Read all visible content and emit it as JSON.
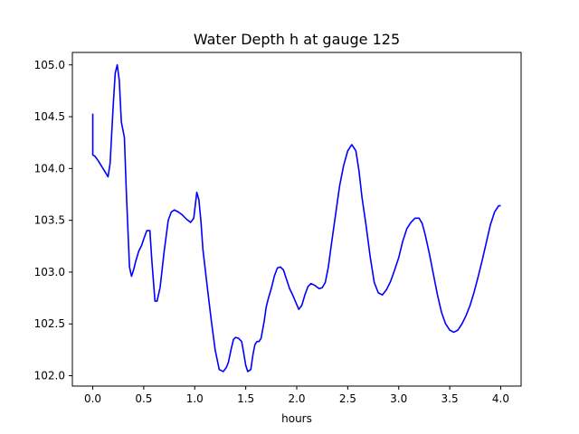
{
  "chart_data": {
    "type": "line",
    "title": "Water Depth h at gauge 125",
    "xlabel": "hours",
    "ylabel": "",
    "xlim": [
      -0.2,
      4.2
    ],
    "ylim": [
      101.9,
      105.12
    ],
    "xticks": [
      0.0,
      0.5,
      1.0,
      1.5,
      2.0,
      2.5,
      3.0,
      3.5,
      4.0
    ],
    "xtick_labels": [
      "0.0",
      "0.5",
      "1.0",
      "1.5",
      "2.0",
      "2.5",
      "3.0",
      "3.5",
      "4.0"
    ],
    "yticks": [
      102.0,
      102.5,
      103.0,
      103.5,
      104.0,
      104.5,
      105.0
    ],
    "ytick_labels": [
      "102.0",
      "102.5",
      "103.0",
      "103.5",
      "104.0",
      "104.5",
      "105.0"
    ],
    "grid": false,
    "series": [
      {
        "color": "#0000ff",
        "x": [
          0.0,
          0.0,
          0.02,
          0.05,
          0.1,
          0.15,
          0.17,
          0.2,
          0.22,
          0.24,
          0.26,
          0.28,
          0.31,
          0.33,
          0.36,
          0.38,
          0.4,
          0.42,
          0.45,
          0.48,
          0.5,
          0.53,
          0.56,
          0.58,
          0.61,
          0.63,
          0.66,
          0.7,
          0.74,
          0.77,
          0.8,
          0.84,
          0.88,
          0.92,
          0.96,
          0.99,
          1.02,
          1.04,
          1.06,
          1.08,
          1.12,
          1.16,
          1.2,
          1.24,
          1.28,
          1.31,
          1.33,
          1.36,
          1.38,
          1.4,
          1.43,
          1.46,
          1.48,
          1.5,
          1.52,
          1.55,
          1.57,
          1.59,
          1.61,
          1.63,
          1.65,
          1.68,
          1.7,
          1.72,
          1.75,
          1.78,
          1.81,
          1.84,
          1.87,
          1.9,
          1.93,
          1.96,
          1.99,
          2.02,
          2.05,
          2.08,
          2.11,
          2.14,
          2.18,
          2.22,
          2.25,
          2.28,
          2.31,
          2.34,
          2.38,
          2.42,
          2.46,
          2.5,
          2.54,
          2.58,
          2.61,
          2.64,
          2.68,
          2.72,
          2.76,
          2.8,
          2.84,
          2.88,
          2.92,
          2.96,
          3.0,
          3.04,
          3.08,
          3.12,
          3.16,
          3.2,
          3.23,
          3.26,
          3.3,
          3.34,
          3.38,
          3.42,
          3.46,
          3.5,
          3.54,
          3.58,
          3.62,
          3.66,
          3.7,
          3.74,
          3.78,
          3.82,
          3.86,
          3.9,
          3.94,
          3.98,
          4.0
        ],
        "y": [
          104.53,
          104.13,
          104.12,
          104.08,
          104.0,
          103.92,
          104.05,
          104.6,
          104.92,
          105.0,
          104.85,
          104.45,
          104.3,
          103.75,
          103.05,
          102.96,
          103.02,
          103.1,
          103.2,
          103.26,
          103.32,
          103.4,
          103.4,
          103.1,
          102.72,
          102.72,
          102.85,
          103.2,
          103.5,
          103.58,
          103.6,
          103.58,
          103.55,
          103.51,
          103.48,
          103.52,
          103.77,
          103.7,
          103.5,
          103.22,
          102.88,
          102.55,
          102.25,
          102.06,
          102.04,
          102.08,
          102.13,
          102.27,
          102.35,
          102.37,
          102.36,
          102.33,
          102.22,
          102.1,
          102.04,
          102.06,
          102.2,
          102.3,
          102.33,
          102.33,
          102.36,
          102.52,
          102.66,
          102.74,
          102.84,
          102.96,
          103.04,
          103.05,
          103.02,
          102.93,
          102.84,
          102.78,
          102.71,
          102.64,
          102.68,
          102.78,
          102.86,
          102.89,
          102.87,
          102.84,
          102.85,
          102.9,
          103.05,
          103.27,
          103.55,
          103.83,
          104.03,
          104.17,
          104.23,
          104.17,
          103.98,
          103.72,
          103.45,
          103.15,
          102.9,
          102.8,
          102.78,
          102.83,
          102.91,
          103.02,
          103.14,
          103.3,
          103.42,
          103.48,
          103.52,
          103.52,
          103.47,
          103.36,
          103.18,
          102.98,
          102.78,
          102.61,
          102.5,
          102.44,
          102.42,
          102.44,
          102.5,
          102.58,
          102.68,
          102.81,
          102.96,
          103.12,
          103.29,
          103.46,
          103.58,
          103.64,
          103.64
        ]
      }
    ]
  }
}
